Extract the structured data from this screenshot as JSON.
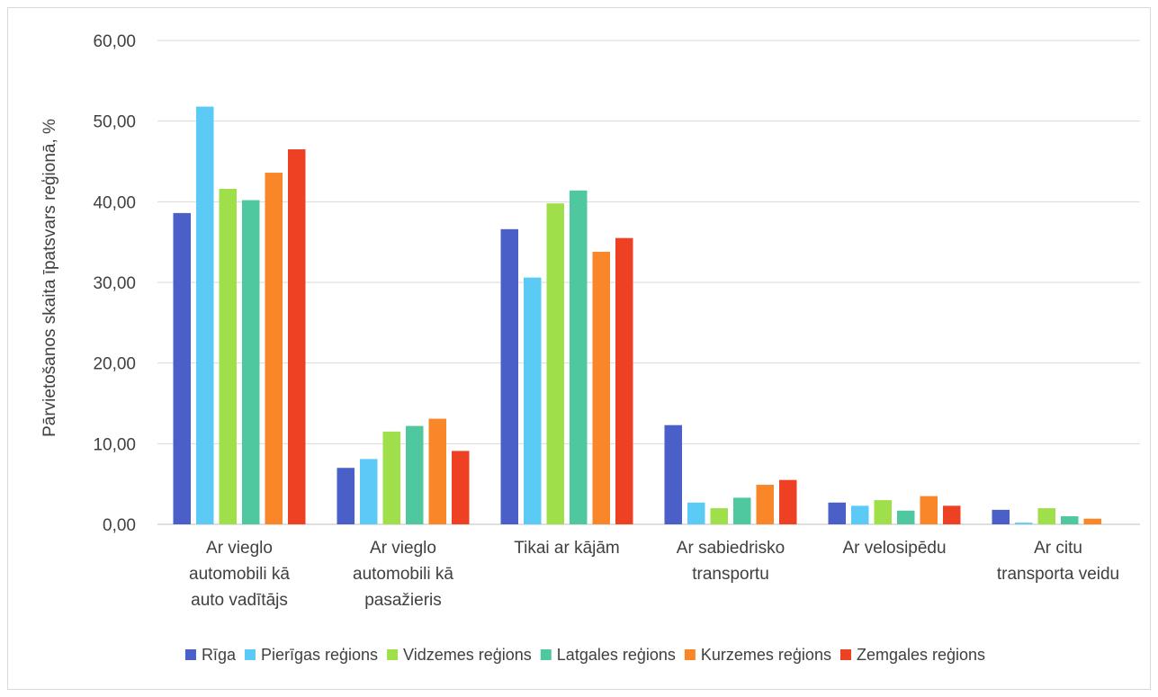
{
  "chart_data": {
    "type": "bar",
    "title": "",
    "xlabel": "",
    "ylabel": "Pārvietošanos skaita īpatsvars reģionā, %",
    "ylim": [
      0,
      60
    ],
    "yticks": [
      "0,00",
      "10,00",
      "20,00",
      "30,00",
      "40,00",
      "50,00",
      "60,00"
    ],
    "grid": true,
    "legend_position": "bottom",
    "categories": [
      [
        "Ar vieglo",
        "automobili kā",
        "auto vadītājs"
      ],
      [
        "Ar vieglo",
        "automobili kā",
        "pasažieris"
      ],
      [
        "Tikai ar kājām"
      ],
      [
        "Ar sabiedrisko",
        "transportu"
      ],
      [
        "Ar velosipēdu"
      ],
      [
        "Ar citu",
        "transporta veidu"
      ]
    ],
    "series": [
      {
        "name": "Rīga",
        "color": "#4a5fc8",
        "values": [
          38.6,
          7.0,
          36.6,
          12.3,
          2.7,
          1.8
        ]
      },
      {
        "name": "Pierīgas reģions",
        "color": "#5bcbf5",
        "values": [
          51.8,
          8.1,
          30.6,
          2.7,
          2.3,
          0.2
        ]
      },
      {
        "name": "Vidzemes reģions",
        "color": "#9fe04a",
        "values": [
          41.6,
          11.5,
          39.8,
          2.0,
          3.0,
          2.0
        ]
      },
      {
        "name": "Latgales reģions",
        "color": "#4fc8a0",
        "values": [
          40.2,
          12.2,
          41.4,
          3.3,
          1.7,
          1.0
        ]
      },
      {
        "name": "Kurzemes reģions",
        "color": "#f98628",
        "values": [
          43.6,
          13.1,
          33.8,
          4.9,
          3.5,
          0.7
        ]
      },
      {
        "name": "Zemgales reģions",
        "color": "#ee4023",
        "values": [
          46.5,
          9.1,
          35.5,
          5.5,
          2.3,
          0.0
        ]
      }
    ]
  }
}
